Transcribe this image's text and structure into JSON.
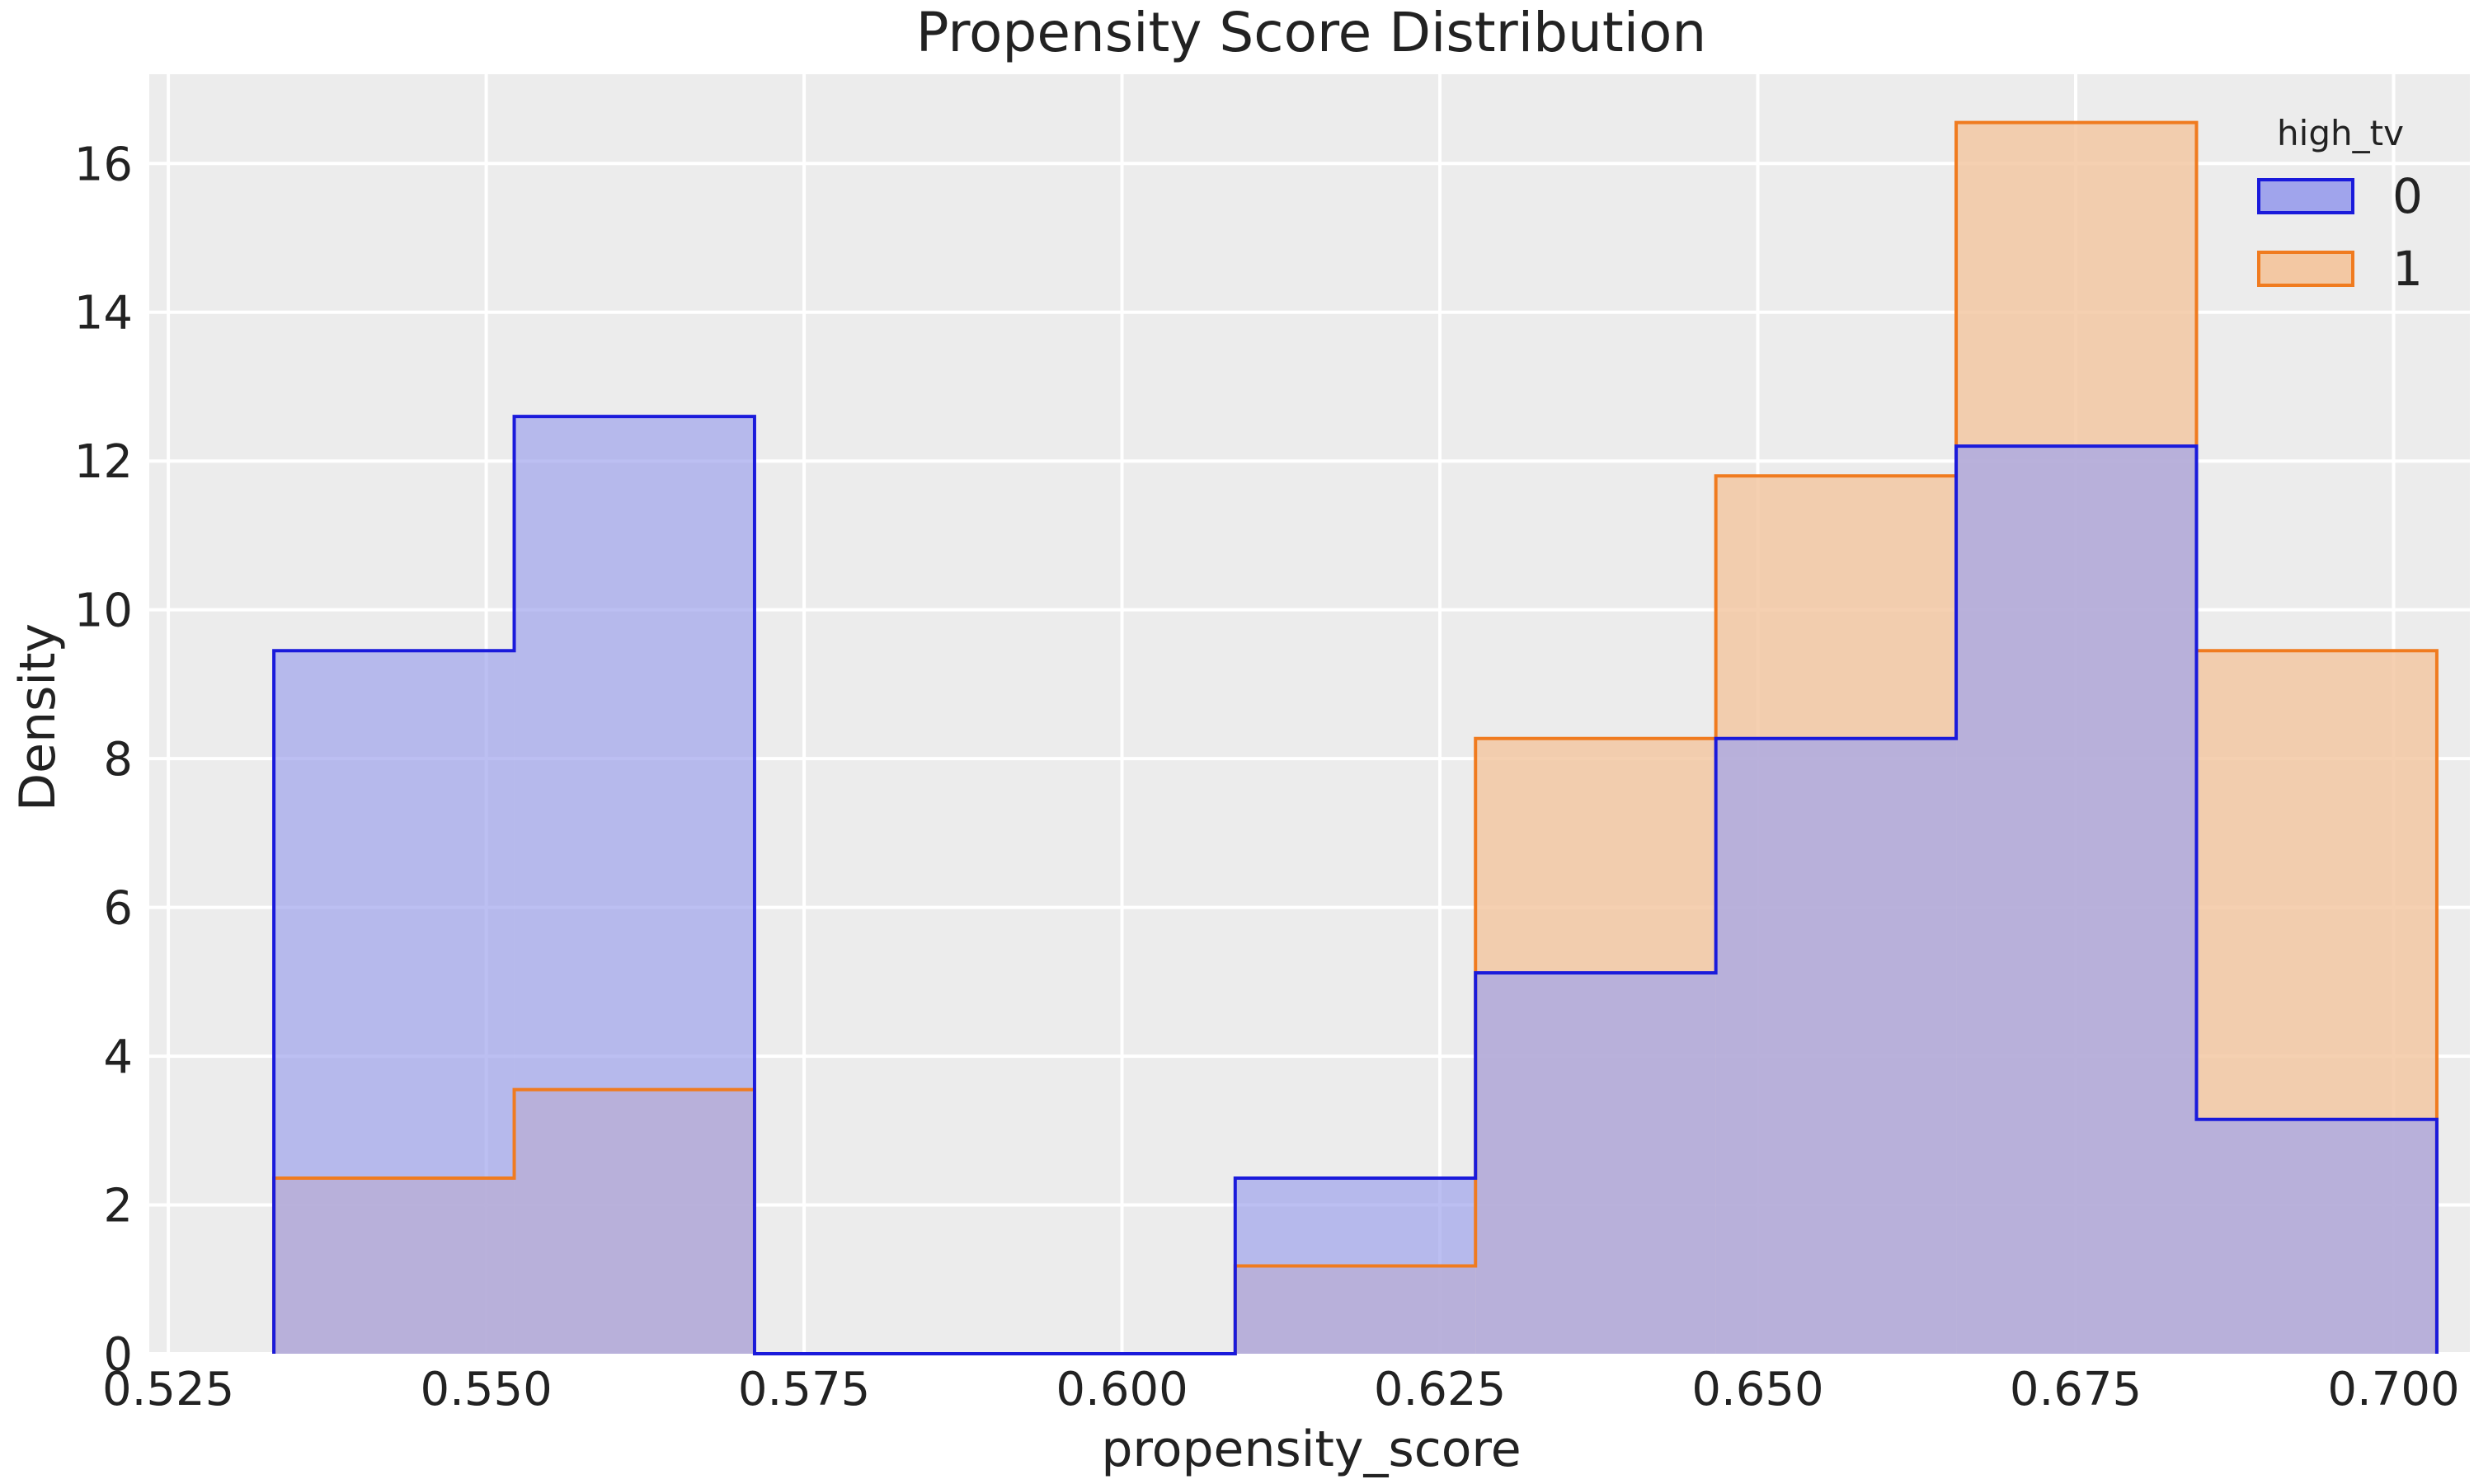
{
  "chart_data": {
    "type": "histogram",
    "title": "Propensity Score Distribution",
    "xlabel": "propensity_score",
    "ylabel": "Density",
    "xlim": [
      0.5235,
      0.706
    ],
    "ylim": [
      0,
      17.2
    ],
    "xticks": [
      0.525,
      0.55,
      0.575,
      0.6,
      0.625,
      0.65,
      0.675,
      0.7
    ],
    "xtick_labels": [
      "0.525",
      "0.550",
      "0.575",
      "0.600",
      "0.625",
      "0.650",
      "0.675",
      "0.700"
    ],
    "yticks": [
      0,
      2,
      4,
      6,
      8,
      10,
      12,
      14,
      16
    ],
    "ytick_labels": [
      "0",
      "2",
      "4",
      "6",
      "8",
      "10",
      "12",
      "14",
      "16"
    ],
    "grid": true,
    "legend": {
      "title": "high_tv",
      "position": "top-right"
    },
    "bin_edges": [
      0.5333,
      0.5522,
      0.5711,
      0.59,
      0.6089,
      0.6278,
      0.6467,
      0.6656,
      0.6845,
      0.7034
    ],
    "series": [
      {
        "name": "0",
        "values": [
          9.45,
          12.6,
          0,
          0,
          2.36,
          5.12,
          8.27,
          12.2,
          3.15
        ],
        "stroke": "#1a1adb",
        "fill": "#a0a4ec"
      },
      {
        "name": "1",
        "values": [
          2.36,
          3.55,
          0,
          0,
          1.18,
          8.27,
          11.8,
          16.55,
          9.45
        ],
        "stroke": "#f07b1f",
        "fill": "#f3c8a3"
      }
    ],
    "colors": {
      "background": "#ececec",
      "grid": "#ffffff",
      "overlap": "#bfa6c5"
    }
  }
}
